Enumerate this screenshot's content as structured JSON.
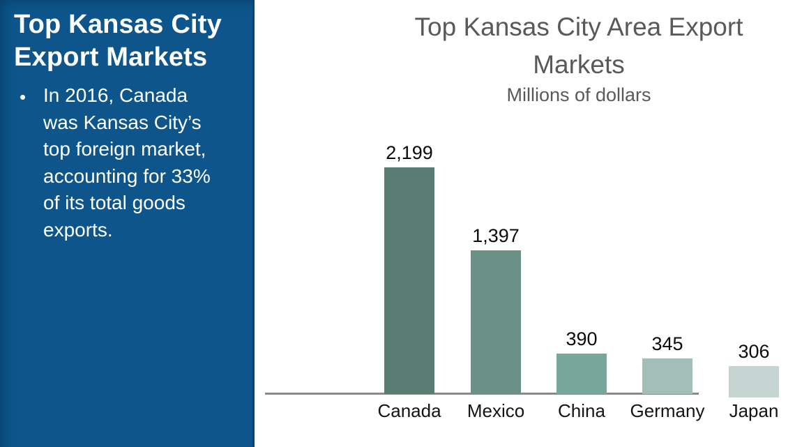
{
  "sidebar": {
    "background_color": "#0d558b",
    "title_lines": [
      "Top Kansas City",
      "Export Markets"
    ],
    "bullet_glyph": "•",
    "bullet_lines": [
      "In 2016, Canada",
      "was Kansas City’s",
      "top foreign market,",
      "accounting for 33%",
      "of its total goods",
      "exports."
    ]
  },
  "chart_data": {
    "type": "bar",
    "title_lines": [
      "Top Kansas City Area Export",
      "Markets"
    ],
    "title": "Top Kansas City Area Export Markets",
    "subtitle": "Millions of dollars",
    "xlabel": "",
    "ylabel": "",
    "categories": [
      "Canada",
      "Mexico",
      "China",
      "Germany",
      "Japan"
    ],
    "values": [
      2199,
      1397,
      390,
      345,
      306
    ],
    "value_labels": [
      "2,199",
      "1,397",
      "390",
      "345",
      "306"
    ],
    "bar_colors": [
      "#5a7d73",
      "#6b9187",
      "#7aa79c",
      "#a2bfb7",
      "#c6d5d1"
    ],
    "ylim": [
      0,
      2199
    ],
    "grid": "off",
    "legend": "none",
    "title_color": "#58595b",
    "value_label_color": "#0b0b0b",
    "category_label_color": "#141414",
    "axis_color": "#898a8c"
  }
}
